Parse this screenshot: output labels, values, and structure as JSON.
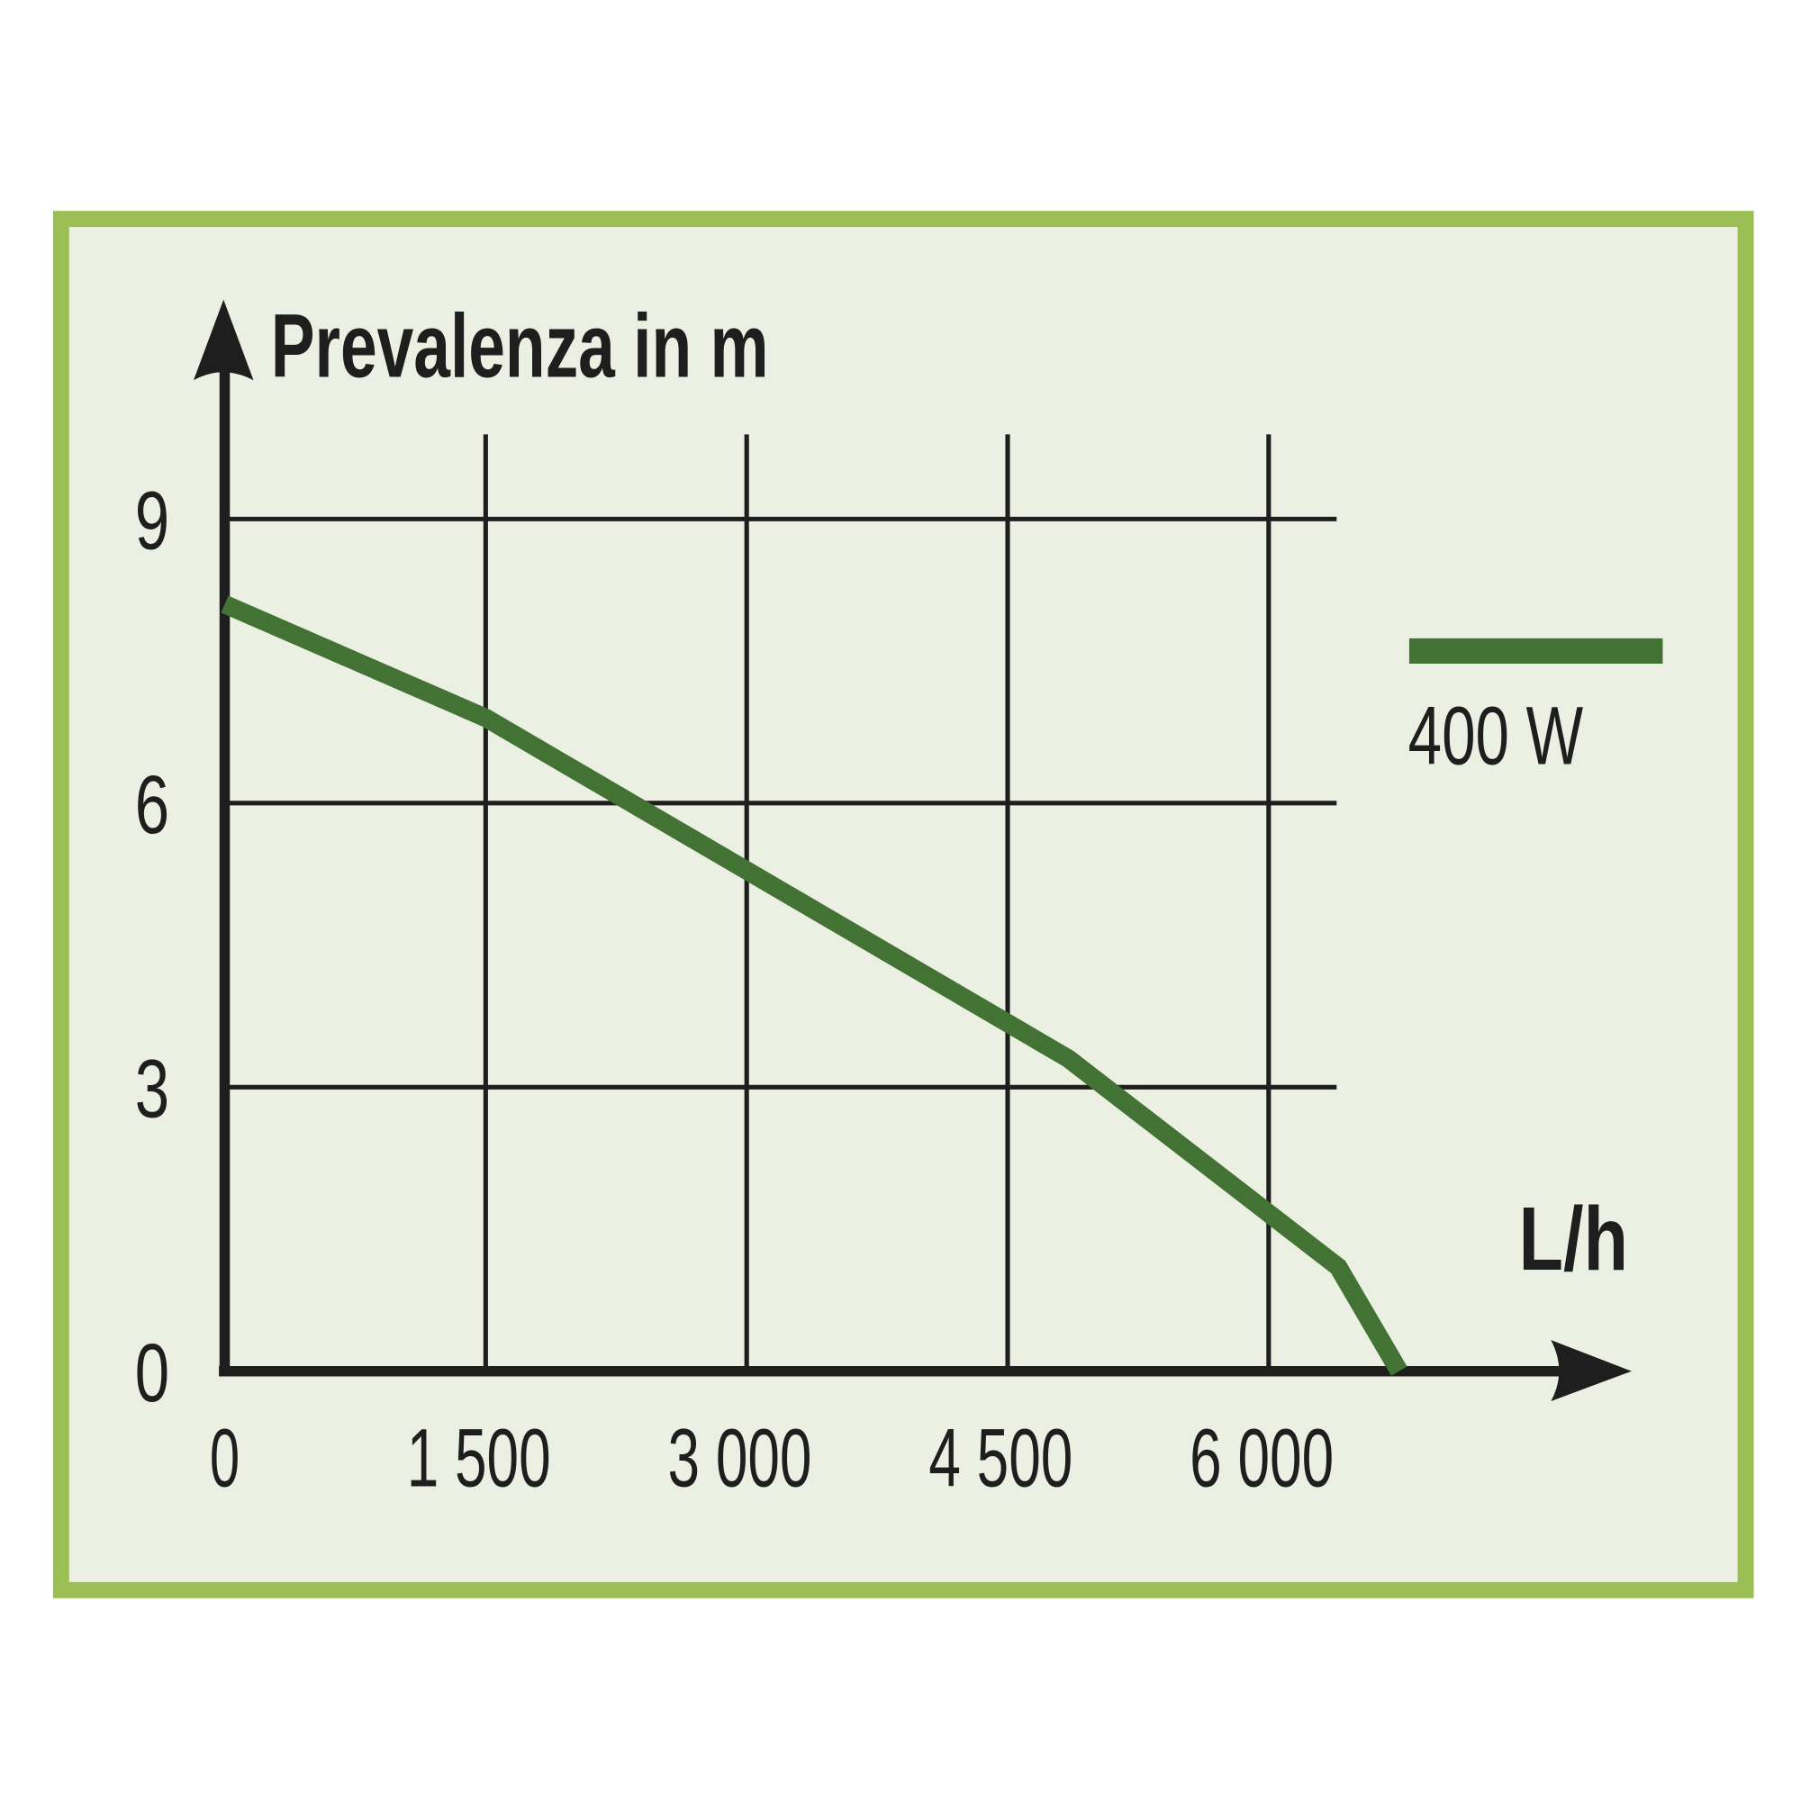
{
  "chart_data": {
    "type": "line",
    "y_label": "Prevalenza in m",
    "x_label": "L/h",
    "x": [
      0,
      1500,
      4850,
      6400,
      6750
    ],
    "series": [
      {
        "name": "400 W",
        "color": "#437235",
        "values": [
          8.1,
          6.9,
          3.3,
          1.1,
          0
        ]
      }
    ],
    "xlim": [
      0,
      8000
    ],
    "xticks": [
      0,
      {
        "value": 1500,
        "label": "1 500"
      },
      {
        "value": 3000,
        "label": "3 000"
      },
      {
        "value": 4500,
        "label": "4 500"
      },
      {
        "value": 6000,
        "label": "6 000"
      }
    ],
    "ylim": [
      0,
      11.5
    ],
    "yticks": [
      0,
      3,
      6,
      9
    ],
    "grid": true,
    "legend": "right"
  }
}
